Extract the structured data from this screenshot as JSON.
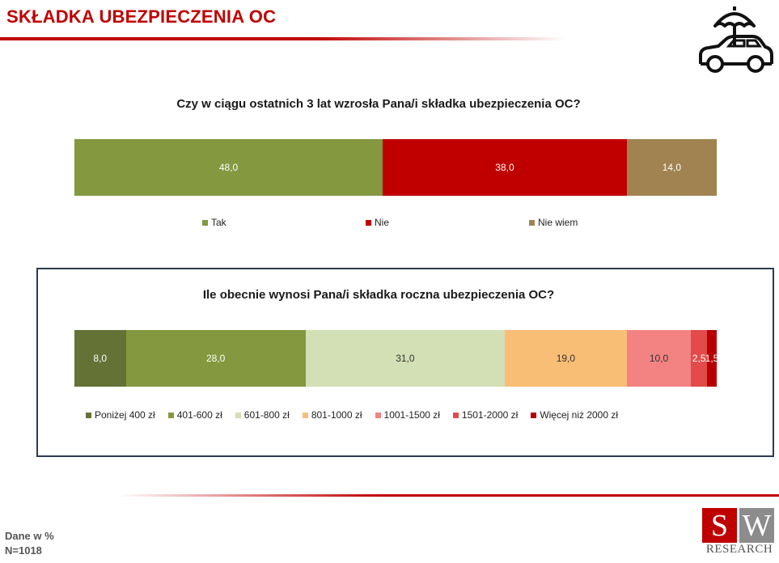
{
  "header": {
    "title": "SKŁADKA UBEZPIECZENIA OC"
  },
  "logo_icon": "car-umbrella-icon",
  "colors": {
    "accent": "#c00000",
    "border": "#2e3b4e"
  },
  "chart_data": [
    {
      "type": "bar",
      "orientation": "horizontal",
      "stacked": true,
      "title": "Czy w ciągu ostatnich 3 lat wzrosła Pana/i składka ubezpieczenia OC?",
      "series": [
        {
          "name": "Tak",
          "value": 48.0,
          "label": "48,0",
          "color": "#83983f"
        },
        {
          "name": "Nie",
          "value": 38.0,
          "label": "38,0",
          "color": "#c00000"
        },
        {
          "name": "Nie wiem",
          "value": 14.0,
          "label": "14,0",
          "color": "#a08350"
        }
      ],
      "legend_position": "bottom"
    },
    {
      "type": "bar",
      "orientation": "horizontal",
      "stacked": true,
      "title": "Ile obecnie wynosi Pana/i składka roczna ubezpieczenia OC?",
      "series": [
        {
          "name": "Poniżej 400 zł",
          "value": 8.0,
          "label": "8,0",
          "color": "#647235"
        },
        {
          "name": "401-600 zł",
          "value": 28.0,
          "label": "28,0",
          "color": "#83983f"
        },
        {
          "name": "601-800 zł",
          "value": 31.0,
          "label": "31,0",
          "color": "#d3dfb4"
        },
        {
          "name": "801-1000 zł",
          "value": 19.0,
          "label": "19,0",
          "color": "#f9be75"
        },
        {
          "name": "1001-1500 zł",
          "value": 10.0,
          "label": "10,0",
          "color": "#f38383"
        },
        {
          "name": "1501-2000 zł",
          "value": 2.5,
          "label": "2,5",
          "color": "#e34a4a"
        },
        {
          "name": "Więcej niż 2000 zł",
          "value": 1.5,
          "label": "1,5",
          "color": "#b80000"
        }
      ],
      "legend_position": "bottom"
    }
  ],
  "footer": {
    "line1": "Dane w %",
    "line2": "N=1018"
  },
  "brand": {
    "s": "S",
    "w": "W",
    "research": "RESEARCH"
  }
}
